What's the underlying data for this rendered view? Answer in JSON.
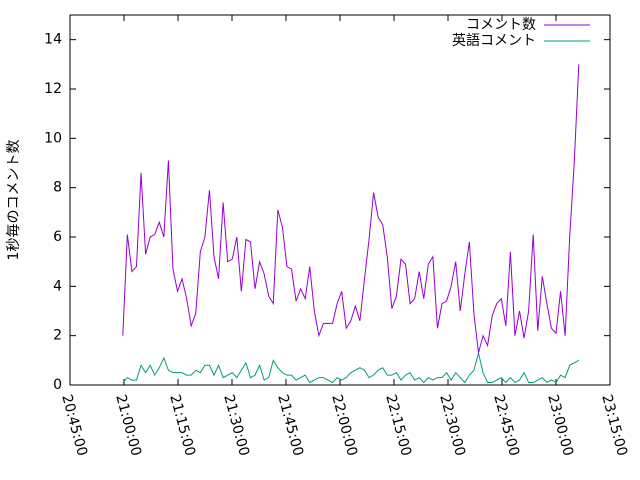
{
  "chart_data": {
    "type": "line",
    "y_label": "1秒毎のコメント数",
    "xlim": [
      "20:45:00",
      "23:15:00"
    ],
    "xticks": [
      "20:45:00",
      "21:00:00",
      "21:15:00",
      "21:30:00",
      "21:45:00",
      "22:00:00",
      "22:15:00",
      "22:30:00",
      "22:45:00",
      "23:00:00",
      "23:15:00"
    ],
    "ylim": [
      0,
      15
    ],
    "yticks": [
      0,
      2,
      4,
      6,
      8,
      10,
      12,
      14
    ],
    "legend": "top-right",
    "x": [
      "20:59:40",
      "21:00:56",
      "21:02:12",
      "21:03:28",
      "21:04:44",
      "21:06:00",
      "21:07:16",
      "21:08:32",
      "21:09:48",
      "21:11:04",
      "21:12:20",
      "21:13:36",
      "21:14:52",
      "21:16:08",
      "21:17:24",
      "21:18:40",
      "21:19:56",
      "21:21:12",
      "21:22:28",
      "21:23:44",
      "21:25:00",
      "21:26:16",
      "21:27:32",
      "21:28:48",
      "21:30:04",
      "21:31:20",
      "21:32:36",
      "21:33:52",
      "21:35:08",
      "21:36:24",
      "21:37:40",
      "21:38:56",
      "21:40:12",
      "21:41:28",
      "21:42:44",
      "21:44:00",
      "21:45:16",
      "21:46:32",
      "21:47:48",
      "21:49:04",
      "21:50:20",
      "21:51:36",
      "21:52:52",
      "21:54:08",
      "21:55:24",
      "21:56:40",
      "21:57:56",
      "21:59:12",
      "22:00:28",
      "22:01:44",
      "22:03:00",
      "22:04:16",
      "22:05:32",
      "22:06:48",
      "22:08:04",
      "22:09:20",
      "22:10:36",
      "22:11:52",
      "22:13:08",
      "22:14:24",
      "22:15:40",
      "22:16:56",
      "22:18:12",
      "22:19:28",
      "22:20:44",
      "22:22:00",
      "22:23:16",
      "22:24:32",
      "22:25:48",
      "22:27:04",
      "22:28:20",
      "22:29:36",
      "22:30:52",
      "22:32:08",
      "22:33:24",
      "22:34:40",
      "22:35:56",
      "22:37:12",
      "22:38:28",
      "22:39:44",
      "22:41:00",
      "22:42:16",
      "22:43:32",
      "22:44:48",
      "22:46:04",
      "22:47:20",
      "22:48:36",
      "22:49:52",
      "22:51:08",
      "22:52:24",
      "22:53:40",
      "22:54:56",
      "22:56:12",
      "22:57:28",
      "22:58:44",
      "23:00:00",
      "23:01:16",
      "23:02:32",
      "23:03:48",
      "23:05:04",
      "23:06:20"
    ],
    "series": [
      {
        "name": "コメント数",
        "color": "#9400d3",
        "values": [
          2.0,
          6.1,
          4.6,
          4.8,
          8.6,
          5.3,
          6.0,
          6.1,
          6.6,
          6.0,
          9.1,
          4.7,
          3.8,
          4.3,
          3.5,
          2.4,
          2.9,
          5.4,
          6.0,
          7.9,
          5.2,
          4.3,
          7.4,
          5.0,
          5.1,
          6.0,
          3.8,
          5.9,
          5.8,
          3.9,
          5.0,
          4.5,
          3.6,
          3.3,
          7.1,
          6.4,
          4.8,
          4.7,
          3.4,
          3.9,
          3.5,
          4.8,
          3.0,
          2.0,
          2.5,
          2.5,
          2.5,
          3.3,
          3.8,
          2.3,
          2.6,
          3.2,
          2.6,
          4.3,
          5.9,
          7.8,
          6.8,
          6.5,
          5.2,
          3.1,
          3.6,
          5.1,
          4.9,
          3.3,
          3.5,
          4.6,
          3.5,
          4.9,
          5.2,
          2.3,
          3.3,
          3.4,
          4.0,
          5.0,
          3.0,
          4.5,
          5.8,
          2.9,
          1.3,
          2.0,
          1.6,
          2.8,
          3.3,
          3.5,
          2.4,
          5.4,
          2.0,
          3.0,
          1.9,
          3.0,
          6.1,
          2.2,
          4.4,
          3.3,
          2.3,
          2.1,
          3.8,
          2.0,
          6.0,
          9.0,
          13.0
        ]
      },
      {
        "name": "英語コメント",
        "color": "#009e73",
        "values": [
          0.1,
          0.3,
          0.2,
          0.2,
          0.8,
          0.5,
          0.8,
          0.4,
          0.7,
          1.1,
          0.6,
          0.5,
          0.5,
          0.5,
          0.4,
          0.4,
          0.6,
          0.5,
          0.8,
          0.8,
          0.4,
          0.8,
          0.3,
          0.4,
          0.5,
          0.3,
          0.6,
          0.9,
          0.3,
          0.4,
          0.8,
          0.2,
          0.3,
          1.0,
          0.7,
          0.5,
          0.4,
          0.4,
          0.2,
          0.3,
          0.4,
          0.1,
          0.2,
          0.3,
          0.3,
          0.2,
          0.1,
          0.3,
          0.2,
          0.3,
          0.5,
          0.6,
          0.7,
          0.6,
          0.3,
          0.4,
          0.6,
          0.7,
          0.4,
          0.4,
          0.5,
          0.2,
          0.4,
          0.5,
          0.2,
          0.3,
          0.1,
          0.3,
          0.2,
          0.3,
          0.3,
          0.5,
          0.2,
          0.5,
          0.3,
          0.1,
          0.4,
          0.6,
          1.3,
          0.5,
          0.1,
          0.1,
          0.2,
          0.3,
          0.1,
          0.3,
          0.1,
          0.2,
          0.5,
          0.1,
          0.1,
          0.2,
          0.3,
          0.1,
          0.2,
          0.1,
          0.4,
          0.3,
          0.8,
          0.9,
          1.0
        ]
      }
    ]
  }
}
